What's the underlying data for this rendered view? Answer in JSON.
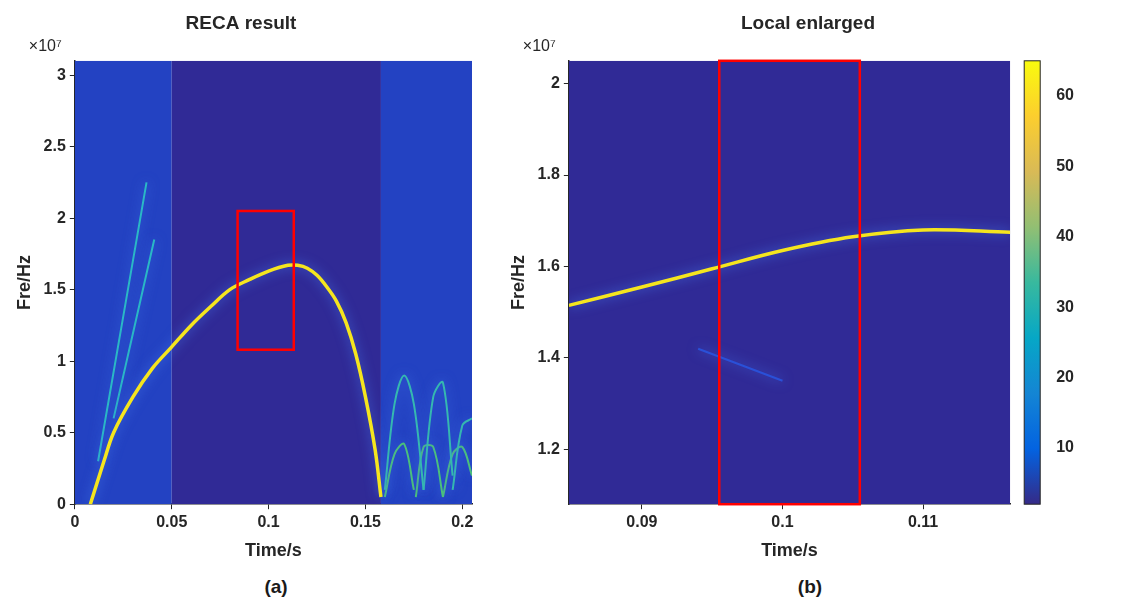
{
  "chart_data": [
    {
      "type": "line",
      "title": "RECA result",
      "x_label": "Time/s",
      "y_label": "Fre/Hz",
      "y_exponent_label": "×10⁷",
      "panel_label": "(a)",
      "xlim": [
        0,
        0.205
      ],
      "ylim": [
        0,
        3.1
      ],
      "xticks": [
        0,
        0.05,
        0.1,
        0.15,
        0.2
      ],
      "yticks": [
        0,
        0.5,
        1,
        1.5,
        2,
        2.5,
        3
      ],
      "grid": false,
      "shaded_regions": [
        {
          "x": [
            0,
            0.05
          ],
          "color": "#2342c2"
        },
        {
          "x": [
            0.05,
            0.158
          ],
          "color": "#302a96"
        },
        {
          "x": [
            0.158,
            0.205
          ],
          "color": "#2342c2"
        }
      ],
      "series": [
        {
          "x": [
            0.008,
            0.015,
            0.02,
            0.03,
            0.04,
            0.05,
            0.06,
            0.07,
            0.08,
            0.09,
            0.1,
            0.11,
            0.115,
            0.12,
            0.125,
            0.13,
            0.135,
            0.14,
            0.145,
            0.15,
            0.155,
            0.158
          ],
          "values": [
            0,
            0.3,
            0.5,
            0.75,
            0.95,
            1.1,
            1.25,
            1.38,
            1.5,
            1.57,
            1.63,
            1.67,
            1.67,
            1.65,
            1.6,
            1.52,
            1.42,
            1.27,
            1.05,
            0.75,
            0.38,
            0.05
          ],
          "color": "#f5e51e"
        },
        {
          "x": [
            0.012,
            0.037
          ],
          "values": [
            0.3,
            2.25
          ],
          "color": "#2ab8c6"
        },
        {
          "x": [
            0.02,
            0.041
          ],
          "values": [
            0.6,
            1.85
          ],
          "color": "#2ab8c6"
        },
        {
          "x": [
            0.16,
            0.165,
            0.17,
            0.175,
            0.18
          ],
          "values": [
            0.1,
            0.7,
            0.9,
            0.7,
            0.1
          ],
          "color": "#35b8b0"
        },
        {
          "x": [
            0.18,
            0.185,
            0.19,
            0.195
          ],
          "values": [
            0.1,
            0.75,
            0.85,
            0.2
          ],
          "color": "#35b8b0"
        },
        {
          "x": [
            0.195,
            0.2,
            0.205
          ],
          "values": [
            0.1,
            0.55,
            0.6
          ],
          "color": "#35b8b0"
        },
        {
          "x": [
            0.16,
            0.165,
            0.17,
            0.175
          ],
          "values": [
            0.05,
            0.35,
            0.42,
            0.1
          ],
          "color": "#4cc27a"
        },
        {
          "x": [
            0.176,
            0.18,
            0.185,
            0.19
          ],
          "values": [
            0.05,
            0.4,
            0.4,
            0.05
          ],
          "color": "#4cc27a"
        },
        {
          "x": [
            0.19,
            0.195,
            0.2,
            0.205
          ],
          "values": [
            0.05,
            0.35,
            0.4,
            0.2
          ],
          "color": "#4cc27a"
        }
      ],
      "highlight_box": {
        "x": [
          0.084,
          0.113
        ],
        "y": [
          1.08,
          2.05
        ],
        "color": "#ff0000"
      }
    },
    {
      "type": "line",
      "title": "Local enlarged",
      "x_label": "Time/s",
      "y_label": "Fre/Hz",
      "y_exponent_label": "×10⁷",
      "panel_label": "(b)",
      "xlim": [
        0.0848,
        0.1162
      ],
      "ylim": [
        1.08,
        2.05
      ],
      "xticks": [
        0.09,
        0.1,
        0.11
      ],
      "yticks": [
        1.2,
        1.4,
        1.6,
        1.8,
        2
      ],
      "grid": false,
      "shaded_regions": [
        {
          "x": [
            0.0848,
            0.1162
          ],
          "color": "#302a96"
        }
      ],
      "series": [
        {
          "x": [
            0.0848,
            0.09,
            0.095,
            0.1,
            0.105,
            0.11,
            0.1162
          ],
          "values": [
            1.515,
            1.555,
            1.595,
            1.635,
            1.665,
            1.68,
            1.675
          ],
          "color": "#f5e51e"
        },
        {
          "x": [
            0.094,
            0.1
          ],
          "values": [
            1.42,
            1.35
          ],
          "color": "#2a50d8"
        }
      ],
      "highlight_box": {
        "x": [
          0.0955,
          0.1055
        ],
        "y": [
          1.08,
          2.05
        ],
        "color": "#ff0000"
      },
      "colorbar": {
        "lim": [
          2,
          65
        ],
        "ticks": [
          10,
          20,
          30,
          40,
          50,
          60
        ]
      }
    }
  ]
}
